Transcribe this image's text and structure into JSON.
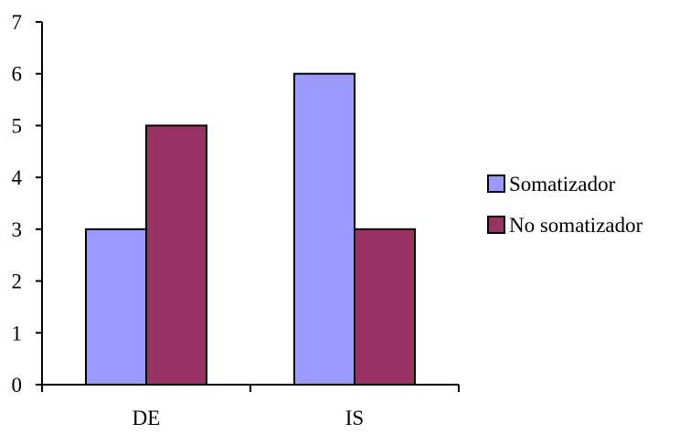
{
  "chart_data": {
    "type": "bar",
    "categories": [
      "DE",
      "IS"
    ],
    "series": [
      {
        "name": "Somatizador",
        "values": [
          3,
          6
        ],
        "color": "#9999ff"
      },
      {
        "name": "No somatizador",
        "values": [
          5,
          3
        ],
        "color": "#993366"
      }
    ],
    "ylim": [
      0,
      7
    ],
    "yticks": [
      0,
      1,
      2,
      3,
      4,
      5,
      6,
      7
    ],
    "grid": false,
    "legend_position": "right",
    "axis_color": "#000000",
    "bar_outline_color": "#000000"
  }
}
